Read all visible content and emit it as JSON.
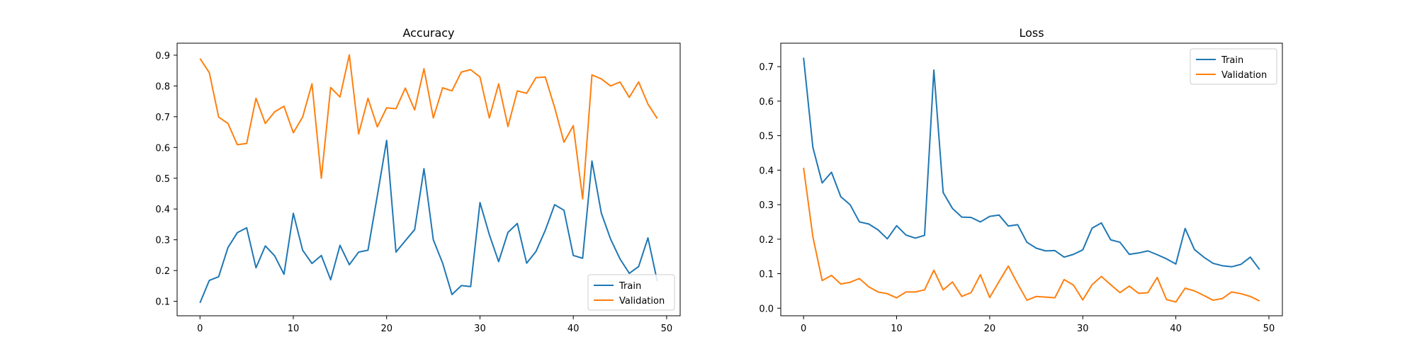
{
  "chart_data": [
    {
      "type": "line",
      "title": "Accuracy",
      "xlabel": "",
      "ylabel": "",
      "xlim": [
        -2.45,
        51.45
      ],
      "ylim": [
        0.053,
        0.939
      ],
      "xticks": [
        0,
        10,
        20,
        30,
        40,
        50
      ],
      "yticks": [
        0.1,
        0.2,
        0.3,
        0.4,
        0.5,
        0.6,
        0.7,
        0.8,
        0.9
      ],
      "ytick_decimals": 1,
      "legend_position": "lower-right",
      "x": [
        0,
        1,
        2,
        3,
        4,
        5,
        6,
        7,
        8,
        9,
        10,
        11,
        12,
        13,
        14,
        15,
        16,
        17,
        18,
        19,
        20,
        21,
        22,
        23,
        24,
        25,
        26,
        27,
        28,
        29,
        30,
        31,
        32,
        33,
        34,
        35,
        36,
        37,
        38,
        39,
        40,
        41,
        42,
        43,
        44,
        45,
        46,
        47,
        48,
        49
      ],
      "series": [
        {
          "name": "Train",
          "color": "#1f77b4",
          "values": [
            0.095,
            0.168,
            0.18,
            0.275,
            0.323,
            0.339,
            0.209,
            0.28,
            0.248,
            0.188,
            0.386,
            0.266,
            0.223,
            0.249,
            0.17,
            0.282,
            0.219,
            0.26,
            0.266,
            0.443,
            0.623,
            0.26,
            0.297,
            0.333,
            0.531,
            0.3,
            0.224,
            0.122,
            0.151,
            0.148,
            0.421,
            0.317,
            0.229,
            0.324,
            0.353,
            0.224,
            0.262,
            0.331,
            0.414,
            0.396,
            0.249,
            0.24,
            0.556,
            0.387,
            0.302,
            0.238,
            0.191,
            0.213,
            0.306,
            0.165
          ]
        },
        {
          "name": "Validation",
          "color": "#ff7f0e",
          "values": [
            0.889,
            0.843,
            0.699,
            0.678,
            0.609,
            0.613,
            0.76,
            0.678,
            0.716,
            0.734,
            0.648,
            0.699,
            0.807,
            0.5,
            0.795,
            0.764,
            0.901,
            0.644,
            0.76,
            0.667,
            0.729,
            0.726,
            0.793,
            0.722,
            0.856,
            0.696,
            0.794,
            0.784,
            0.845,
            0.853,
            0.829,
            0.696,
            0.807,
            0.668,
            0.784,
            0.776,
            0.827,
            0.829,
            0.73,
            0.617,
            0.671,
            0.433,
            0.836,
            0.823,
            0.8,
            0.813,
            0.763,
            0.813,
            0.741,
            0.694
          ]
        }
      ]
    },
    {
      "type": "line",
      "title": "Loss",
      "xlabel": "",
      "ylabel": "",
      "xlim": [
        -2.45,
        51.45
      ],
      "ylim": [
        -0.022,
        0.768
      ],
      "xticks": [
        0,
        10,
        20,
        30,
        40,
        50
      ],
      "yticks": [
        0.0,
        0.1,
        0.2,
        0.3,
        0.4,
        0.5,
        0.6,
        0.7
      ],
      "ytick_decimals": 1,
      "legend_position": "upper-right",
      "x": [
        0,
        1,
        2,
        3,
        4,
        5,
        6,
        7,
        8,
        9,
        10,
        11,
        12,
        13,
        14,
        15,
        16,
        17,
        18,
        19,
        20,
        21,
        22,
        23,
        24,
        25,
        26,
        27,
        28,
        29,
        30,
        31,
        32,
        33,
        34,
        35,
        36,
        37,
        38,
        39,
        40,
        41,
        42,
        43,
        44,
        45,
        46,
        47,
        48,
        49
      ],
      "series": [
        {
          "name": "Train",
          "color": "#1f77b4",
          "values": [
            0.726,
            0.466,
            0.363,
            0.394,
            0.323,
            0.3,
            0.25,
            0.244,
            0.227,
            0.201,
            0.239,
            0.212,
            0.203,
            0.211,
            0.69,
            0.335,
            0.289,
            0.264,
            0.263,
            0.25,
            0.266,
            0.27,
            0.238,
            0.242,
            0.191,
            0.174,
            0.166,
            0.167,
            0.148,
            0.156,
            0.169,
            0.232,
            0.247,
            0.198,
            0.191,
            0.156,
            0.16,
            0.166,
            0.155,
            0.143,
            0.128,
            0.231,
            0.17,
            0.148,
            0.13,
            0.123,
            0.12,
            0.127,
            0.148,
            0.112
          ]
        },
        {
          "name": "Validation",
          "color": "#ff7f0e",
          "values": [
            0.407,
            0.207,
            0.08,
            0.095,
            0.07,
            0.075,
            0.086,
            0.062,
            0.047,
            0.042,
            0.03,
            0.047,
            0.047,
            0.053,
            0.11,
            0.053,
            0.076,
            0.034,
            0.045,
            0.097,
            0.031,
            0.077,
            0.122,
            0.071,
            0.023,
            0.034,
            0.032,
            0.03,
            0.083,
            0.067,
            0.024,
            0.068,
            0.092,
            0.068,
            0.045,
            0.064,
            0.043,
            0.045,
            0.089,
            0.025,
            0.018,
            0.058,
            0.05,
            0.037,
            0.023,
            0.028,
            0.047,
            0.042,
            0.034,
            0.021
          ]
        }
      ]
    }
  ]
}
